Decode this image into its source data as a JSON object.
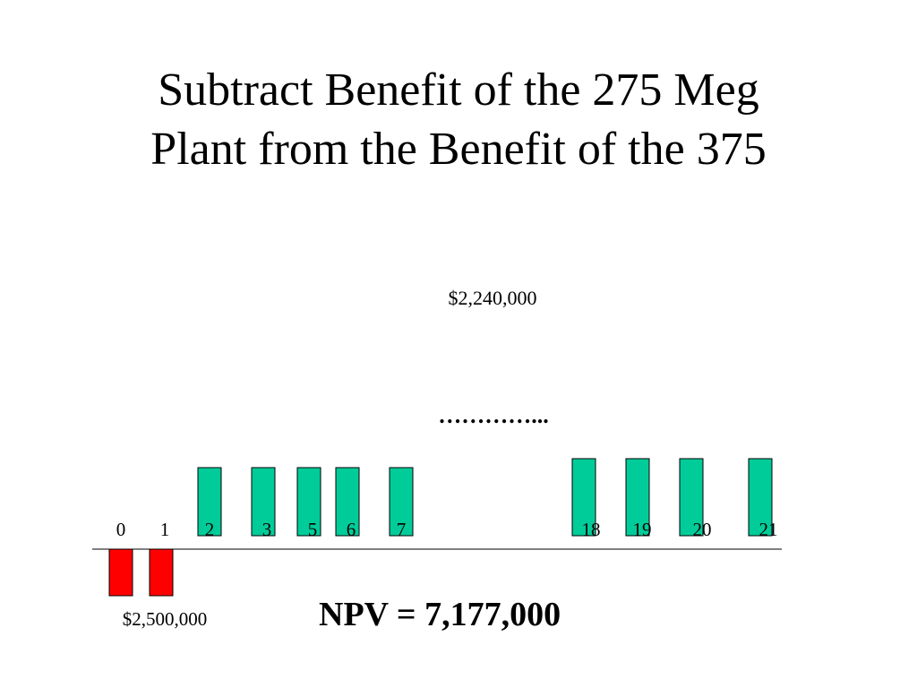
{
  "slide": {
    "title_line1": "Subtract Benefit of the 275 Meg",
    "title_line2": "Plant from the Benefit of the 375",
    "npv": "NPV = 7,177,000"
  },
  "chart_data": {
    "type": "bar",
    "categories": [
      "0",
      "1",
      "2",
      "3",
      "5",
      "6",
      "7",
      "18",
      "19",
      "20",
      "21"
    ],
    "series": [
      {
        "values": [
          -2500000,
          -2500000,
          2240000,
          2240000,
          2240000,
          2240000,
          2240000,
          2240000,
          2240000,
          2240000,
          2240000
        ]
      }
    ],
    "annotations": {
      "benefit_label": "$2,240,000",
      "cost_label": "$2,500,000",
      "ellipsis": "…………..."
    },
    "colors": {
      "cost": "#ff0000",
      "benefit": "#00cc99",
      "outline": "#000000"
    },
    "grid": false
  }
}
